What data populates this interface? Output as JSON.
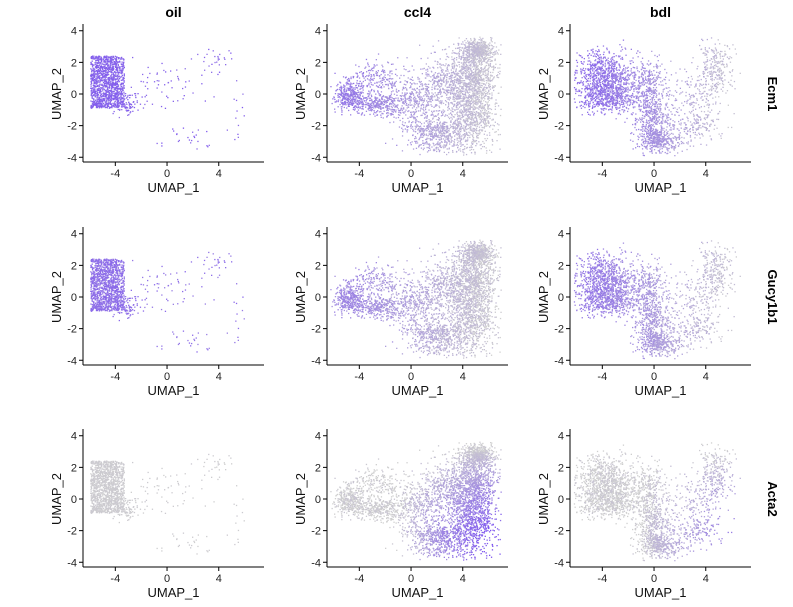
{
  "chart_data": {
    "type": "scatter",
    "kind": "umap-feature-plot-grid",
    "columns": [
      "oil",
      "ccl4",
      "bdl"
    ],
    "rows": [
      "Ecm1",
      "Gucy1b1",
      "Acta2"
    ],
    "xlabel": "UMAP_1",
    "ylabel": "UMAP_2",
    "xlim": [
      -6.5,
      7.5
    ],
    "ylim": [
      -4.3,
      4.3
    ],
    "xticks": [
      -4,
      0,
      4
    ],
    "yticks": [
      -4,
      -2,
      0,
      2,
      4
    ],
    "grid": false,
    "legend": "none",
    "colors": {
      "low": "#cfcfcf",
      "high": "#7b52f0"
    },
    "clusters": {
      "oil": [
        {
          "cx": -4.6,
          "cy": 0.5,
          "sx": 0.55,
          "sy": 0.85,
          "n": 1300,
          "xmin": -5.9,
          "xmax": -3.3,
          "ymin": -0.9,
          "ymax": 2.4
        },
        {
          "cx": -3.0,
          "cy": -0.6,
          "sx": 0.6,
          "sy": 0.4,
          "n": 90
        },
        {
          "cx": 0.0,
          "cy": 0.6,
          "sx": 1.8,
          "sy": 0.8,
          "n": 60
        },
        {
          "cx": 1.5,
          "cy": -2.8,
          "sx": 1.0,
          "sy": 0.4,
          "n": 25
        },
        {
          "cx": 3.8,
          "cy": 2.2,
          "sx": 0.7,
          "sy": 0.5,
          "n": 25
        },
        {
          "cx": 5.3,
          "cy": -1.5,
          "sx": 0.3,
          "sy": 0.8,
          "n": 12
        }
      ],
      "ccl4": [
        {
          "cx": -4.8,
          "cy": -0.1,
          "sx": 0.55,
          "sy": 0.45,
          "n": 320
        },
        {
          "cx": -2.6,
          "cy": -0.6,
          "sx": 1.0,
          "sy": 0.35,
          "n": 320
        },
        {
          "cx": -2.8,
          "cy": 1.0,
          "sx": 1.1,
          "sy": 0.6,
          "n": 200
        },
        {
          "cx": 0.3,
          "cy": -0.4,
          "sx": 1.0,
          "sy": 0.9,
          "n": 380
        },
        {
          "cx": 2.2,
          "cy": -2.5,
          "sx": 1.2,
          "sy": 0.6,
          "n": 550
        },
        {
          "cx": 4.8,
          "cy": -1.2,
          "sx": 0.9,
          "sy": 1.2,
          "n": 800
        },
        {
          "cx": 4.8,
          "cy": 1.3,
          "sx": 0.9,
          "sy": 0.9,
          "n": 800
        },
        {
          "cx": 5.2,
          "cy": 2.8,
          "sx": 0.6,
          "sy": 0.35,
          "n": 450
        },
        {
          "cx": 2.6,
          "cy": 0.6,
          "sx": 1.0,
          "sy": 0.9,
          "n": 400
        }
      ],
      "bdl": [
        {
          "cx": -3.8,
          "cy": 1.2,
          "sx": 1.1,
          "sy": 0.75,
          "n": 700
        },
        {
          "cx": -3.5,
          "cy": -0.2,
          "sx": 1.3,
          "sy": 0.5,
          "n": 550
        },
        {
          "cx": -0.6,
          "cy": 0.5,
          "sx": 0.8,
          "sy": 0.9,
          "n": 350
        },
        {
          "cx": 0.0,
          "cy": -1.8,
          "sx": 0.7,
          "sy": 0.8,
          "n": 400
        },
        {
          "cx": 0.5,
          "cy": -3.0,
          "sx": 0.8,
          "sy": 0.35,
          "n": 300
        },
        {
          "cx": 3.2,
          "cy": -1.9,
          "sx": 1.1,
          "sy": 0.6,
          "n": 180
        },
        {
          "cx": 4.9,
          "cy": 1.6,
          "sx": 0.7,
          "sy": 1.0,
          "n": 260
        },
        {
          "cx": 3.0,
          "cy": 0.2,
          "sx": 1.0,
          "sy": 0.8,
          "n": 120
        }
      ]
    },
    "expression": {
      "Ecm1": {
        "oil": {
          "mode": "high",
          "level": 0.95
        },
        "ccl4": {
          "mode": "gradient-left-high",
          "level": 0.75
        },
        "bdl": {
          "mode": "gradient-left-high",
          "level": 0.85
        }
      },
      "Gucy1b1": {
        "oil": {
          "mode": "high",
          "level": 0.85
        },
        "ccl4": {
          "mode": "gradient-left-high",
          "level": 0.65
        },
        "bdl": {
          "mode": "gradient-left-high",
          "level": 0.75
        }
      },
      "Acta2": {
        "oil": {
          "mode": "low",
          "level": 0.05
        },
        "ccl4": {
          "mode": "gradient-right-high",
          "level": 0.95
        },
        "bdl": {
          "mode": "gradient-right-high",
          "level": 0.6
        }
      }
    }
  }
}
